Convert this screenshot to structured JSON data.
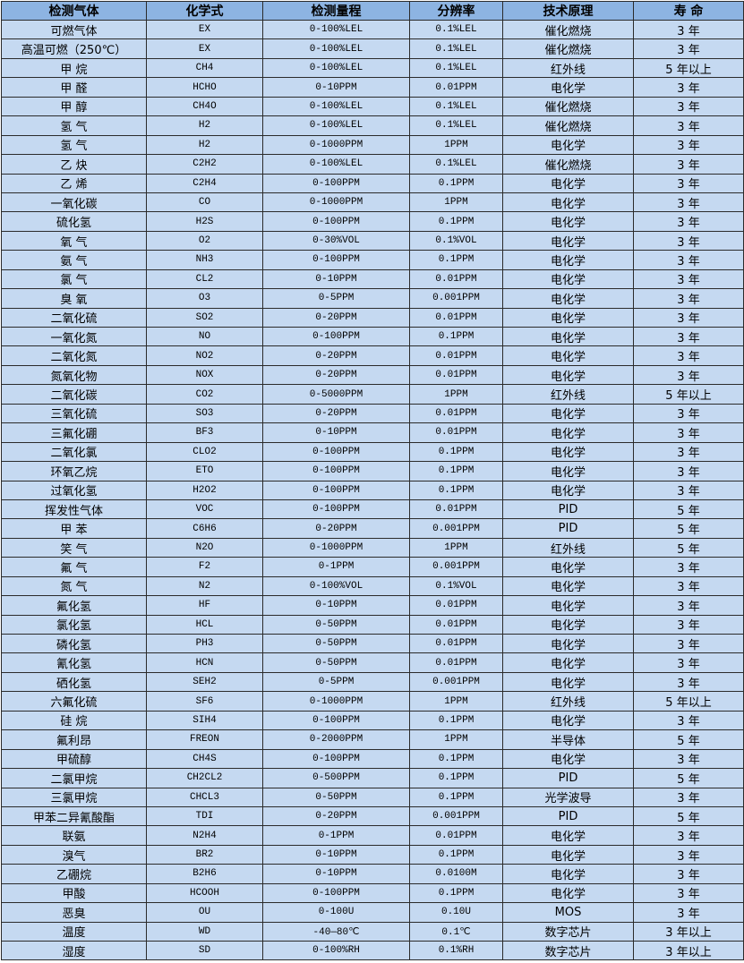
{
  "table": {
    "headers": [
      "检测气体",
      "化学式",
      "检测量程",
      "分辨率",
      "技术原理",
      "寿 命"
    ],
    "rows": [
      [
        "可燃气体",
        "EX",
        "0-100%LEL",
        "0.1%LEL",
        "催化燃烧",
        "3 年"
      ],
      [
        "高温可燃（250℃）",
        "EX",
        "0-100%LEL",
        "0.1%LEL",
        "催化燃烧",
        "3 年"
      ],
      [
        "甲 烷",
        "CH4",
        "0-100%LEL",
        "0.1%LEL",
        "红外线",
        "5 年以上"
      ],
      [
        "甲 醛",
        "HCHO",
        "0-10PPM",
        "0.01PPM",
        "电化学",
        "3 年"
      ],
      [
        "甲 醇",
        "CH4O",
        "0-100%LEL",
        "0.1%LEL",
        "催化燃烧",
        "3 年"
      ],
      [
        "氢 气",
        "H2",
        "0-100%LEL",
        "0.1%LEL",
        "催化燃烧",
        "3 年"
      ],
      [
        "氢 气",
        "H2",
        "0-1000PPM",
        "1PPM",
        "电化学",
        "3 年"
      ],
      [
        "乙 炔",
        "C2H2",
        "0-100%LEL",
        "0.1%LEL",
        "催化燃烧",
        "3 年"
      ],
      [
        "乙 烯",
        "C2H4",
        "0-100PPM",
        "0.1PPM",
        "电化学",
        "3 年"
      ],
      [
        "一氧化碳",
        "CO",
        "0-1000PPM",
        "1PPM",
        "电化学",
        "3 年"
      ],
      [
        "硫化氢",
        "H2S",
        "0-100PPM",
        "0.1PPM",
        "电化学",
        "3 年"
      ],
      [
        "氧 气",
        "O2",
        "0-30%VOL",
        "0.1%VOL",
        "电化学",
        "3 年"
      ],
      [
        "氨 气",
        "NH3",
        "0-100PPM",
        "0.1PPM",
        "电化学",
        "3 年"
      ],
      [
        "氯 气",
        "CL2",
        "0-10PPM",
        "0.01PPM",
        "电化学",
        "3 年"
      ],
      [
        "臭 氧",
        "O3",
        "0-5PPM",
        "0.001PPM",
        "电化学",
        "3 年"
      ],
      [
        "二氧化硫",
        "SO2",
        "0-20PPM",
        "0.01PPM",
        "电化学",
        "3 年"
      ],
      [
        "一氧化氮",
        "NO",
        "0-100PPM",
        "0.1PPM",
        "电化学",
        "3 年"
      ],
      [
        "二氧化氮",
        "NO2",
        "0-20PPM",
        "0.01PPM",
        "电化学",
        "3 年"
      ],
      [
        "氮氧化物",
        "NOX",
        "0-20PPM",
        "0.01PPM",
        "电化学",
        "3 年"
      ],
      [
        "二氧化碳",
        "CO2",
        "0-5000PPM",
        "1PPM",
        "红外线",
        "5 年以上"
      ],
      [
        "三氧化硫",
        "SO3",
        "0-20PPM",
        "0.01PPM",
        "电化学",
        "3 年"
      ],
      [
        "三氟化硼",
        "BF3",
        "0-10PPM",
        "0.01PPM",
        "电化学",
        "3 年"
      ],
      [
        "二氧化氯",
        "CLO2",
        "0-100PPM",
        "0.1PPM",
        "电化学",
        "3 年"
      ],
      [
        "环氧乙烷",
        "ETO",
        "0-100PPM",
        "0.1PPM",
        "电化学",
        "3 年"
      ],
      [
        "过氧化氢",
        "H2O2",
        "0-100PPM",
        "0.1PPM",
        "电化学",
        "3 年"
      ],
      [
        "挥发性气体",
        "VOC",
        "0-100PPM",
        "0.01PPM",
        "PID",
        "5 年"
      ],
      [
        "甲 苯",
        "C6H6",
        "0-20PPM",
        "0.001PPM",
        "PID",
        "5 年"
      ],
      [
        "笑 气",
        "N2O",
        "0-1000PPM",
        "1PPM",
        "红外线",
        "5 年"
      ],
      [
        "氟 气",
        "F2",
        "0-1PPM",
        "0.001PPM",
        "电化学",
        "3 年"
      ],
      [
        "氮 气",
        "N2",
        "0-100%VOL",
        "0.1%VOL",
        "电化学",
        "3 年"
      ],
      [
        "氟化氢",
        "HF",
        "0-10PPM",
        "0.01PPM",
        "电化学",
        "3 年"
      ],
      [
        "氯化氢",
        "HCL",
        "0-50PPM",
        "0.01PPM",
        "电化学",
        "3 年"
      ],
      [
        "磷化氢",
        "PH3",
        "0-50PPM",
        "0.01PPM",
        "电化学",
        "3 年"
      ],
      [
        "氰化氢",
        "HCN",
        "0-50PPM",
        "0.01PPM",
        "电化学",
        "3 年"
      ],
      [
        "硒化氢",
        "SEH2",
        "0-5PPM",
        "0.001PPM",
        "电化学",
        "3 年"
      ],
      [
        "六氟化硫",
        "SF6",
        "0-1000PPM",
        "1PPM",
        "红外线",
        "5 年以上"
      ],
      [
        "硅 烷",
        "SIH4",
        "0-100PPM",
        "0.1PPM",
        "电化学",
        "3 年"
      ],
      [
        "氟利昂",
        "FREON",
        "0-2000PPM",
        "1PPM",
        "半导体",
        "5 年"
      ],
      [
        "甲硫醇",
        "CH4S",
        "0-100PPM",
        "0.1PPM",
        "电化学",
        "3 年"
      ],
      [
        "二氯甲烷",
        "CH2CL2",
        "0-500PPM",
        "0.1PPM",
        "PID",
        "5 年"
      ],
      [
        "三氯甲烷",
        "CHCL3",
        "0-50PPM",
        "0.1PPM",
        "光学波导",
        "3 年"
      ],
      [
        "甲苯二异氰酸酯",
        "TDI",
        "0-20PPM",
        "0.001PPM",
        "PID",
        "5 年"
      ],
      [
        "联氨",
        "N2H4",
        "0-1PPM",
        "0.01PPM",
        "电化学",
        "3 年"
      ],
      [
        "溴气",
        "BR2",
        "0-10PPM",
        "0.1PPM",
        "电化学",
        "3 年"
      ],
      [
        "乙硼烷",
        "B2H6",
        "0-10PPM",
        "0.0100M",
        "电化学",
        "3 年"
      ],
      [
        "甲酸",
        "HCOOH",
        "0-100PPM",
        "0.1PPM",
        "电化学",
        "3 年"
      ],
      [
        "恶臭",
        "OU",
        "0-100U",
        "0.10U",
        "MOS",
        "3 年"
      ],
      [
        "温度",
        "WD",
        "-40—80℃",
        "0.1℃",
        "数字芯片",
        "3 年以上"
      ],
      [
        "湿度",
        "SD",
        "0-100%RH",
        "0.1%RH",
        "数字芯片",
        "3 年以上"
      ]
    ]
  },
  "colors": {
    "header_bg": "#8db4e2",
    "row_bg": "#c5d9f1",
    "border": "#2b2b2b"
  }
}
